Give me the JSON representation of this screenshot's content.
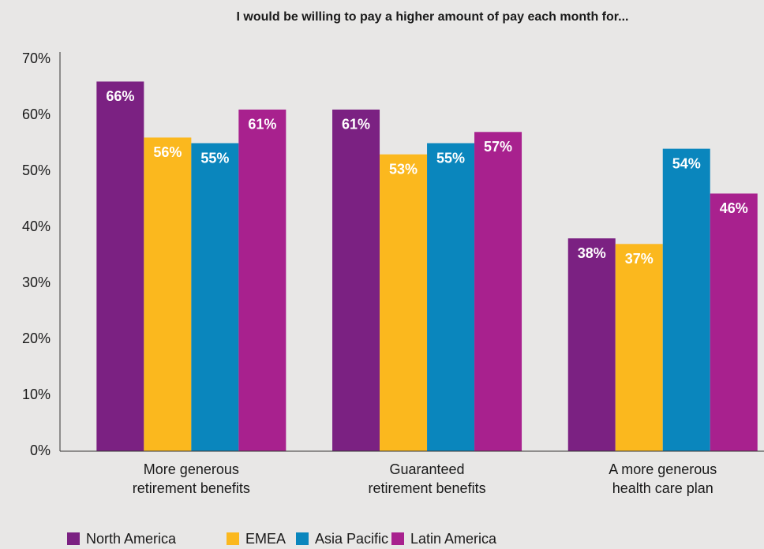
{
  "chart_data": {
    "type": "bar",
    "title": "I would be willing to pay a higher amount of pay each month for...",
    "categories": [
      [
        "More generous",
        "retirement benefits"
      ],
      [
        "Guaranteed",
        "retirement benefits"
      ],
      [
        "A more generous",
        "health care plan"
      ]
    ],
    "series": [
      {
        "name": "North America",
        "color": "#7b2182",
        "values": [
          66,
          61,
          38
        ],
        "value_labels": [
          "66%",
          "61%",
          "38%"
        ]
      },
      {
        "name": "EMEA",
        "color": "#fbb81e",
        "values": [
          56,
          53,
          37
        ],
        "value_labels": [
          "56%",
          "53%",
          "37%"
        ]
      },
      {
        "name": "Asia Pacific",
        "color": "#0a86bd",
        "values": [
          55,
          55,
          54
        ],
        "value_labels": [
          "55%",
          "55%",
          "54%"
        ]
      },
      {
        "name": "Latin America",
        "color": "#a8218e",
        "values": [
          61,
          57,
          46
        ],
        "value_labels": [
          "61%",
          "57%",
          "46%"
        ]
      }
    ],
    "ylim": [
      0,
      70
    ],
    "yticks": [
      {
        "value": 0,
        "label": "0%"
      },
      {
        "value": 10,
        "label": "10%"
      },
      {
        "value": 20,
        "label": "20%"
      },
      {
        "value": 30,
        "label": "30%"
      },
      {
        "value": 40,
        "label": "40%"
      },
      {
        "value": 50,
        "label": "50%"
      },
      {
        "value": 60,
        "label": "60%"
      },
      {
        "value": 70,
        "label": "70%"
      }
    ],
    "grid": false
  }
}
